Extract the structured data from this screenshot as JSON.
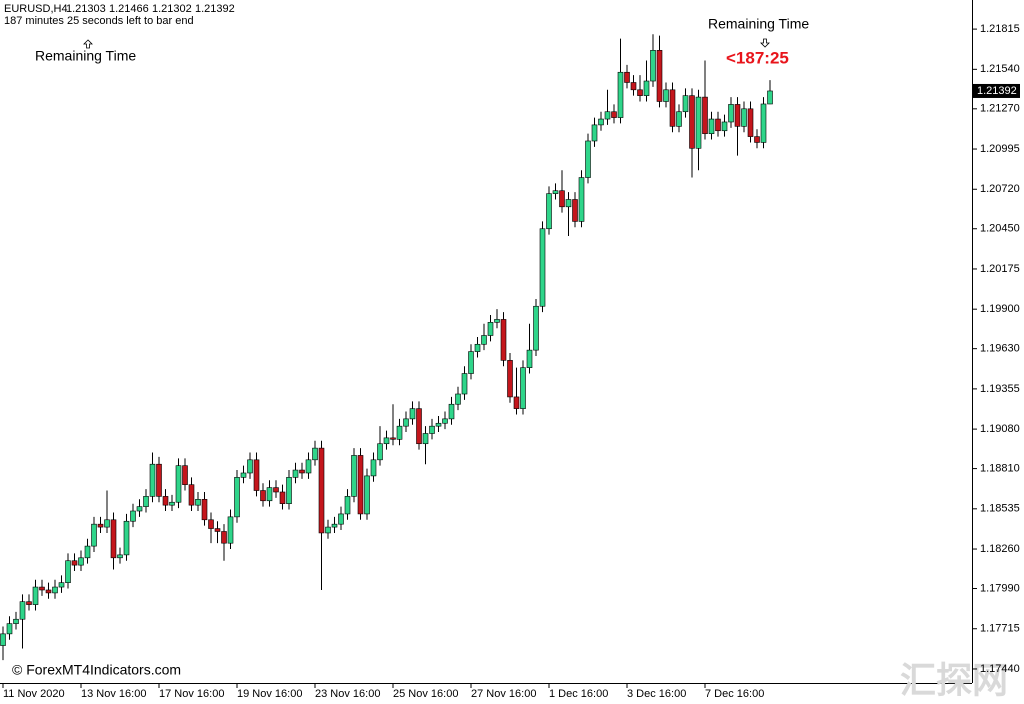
{
  "chart_data": {
    "type": "candlestick",
    "series": [
      {
        "name": "EURUSD,H4",
        "open": [
          1.176,
          1.1768,
          1.1775,
          1.1778,
          1.179,
          1.1788,
          1.18,
          1.1798,
          1.1796,
          1.18,
          1.1803,
          1.1818,
          1.1815,
          1.182,
          1.1828,
          1.1843,
          1.1841,
          1.1846,
          1.182,
          1.1822,
          1.1845,
          1.1852,
          1.1855,
          1.1862,
          1.1884,
          1.1862,
          1.1856,
          1.1858,
          1.1883,
          1.187,
          1.1856,
          1.186,
          1.1846,
          1.184,
          1.1838,
          1.183,
          1.1848,
          1.1875,
          1.1878,
          1.1887,
          1.1866,
          1.1859,
          1.1868,
          1.1865,
          1.1857,
          1.1875,
          1.188,
          1.1878,
          1.1887,
          1.1895,
          1.1837,
          1.1841,
          1.1843,
          1.185,
          1.1862,
          1.189,
          1.185,
          1.1876,
          1.1887,
          1.1898,
          1.1902,
          1.1901,
          1.191,
          1.1915,
          1.1922,
          1.1898,
          1.1905,
          1.191,
          1.1912,
          1.1915,
          1.1925,
          1.1932,
          1.1946,
          1.1961,
          1.1966,
          1.1972,
          1.1981,
          1.1983,
          1.1955,
          1.193,
          1.1922,
          1.195,
          1.1962,
          1.1992,
          1.2045,
          1.2069,
          1.2071,
          1.206,
          1.2065,
          1.205,
          1.208,
          1.2105,
          1.2116,
          1.212,
          1.2125,
          1.2121,
          1.2152,
          1.2145,
          1.214,
          1.2136,
          1.2146,
          1.2167,
          1.2132,
          1.214,
          1.2115,
          1.2125,
          1.2136,
          1.21,
          1.2135,
          1.211,
          1.212,
          1.2112,
          1.2118,
          1.213,
          1.2115,
          1.2127,
          1.2108,
          1.2104,
          1.21303
        ],
        "high": [
          1.1773,
          1.178,
          1.1783,
          1.1795,
          1.1795,
          1.1805,
          1.1805,
          1.1803,
          1.1805,
          1.1808,
          1.1823,
          1.1823,
          1.1825,
          1.1833,
          1.1848,
          1.1848,
          1.1866,
          1.1851,
          1.1827,
          1.185,
          1.1857,
          1.186,
          1.1867,
          1.1892,
          1.1889,
          1.1867,
          1.1863,
          1.1888,
          1.1888,
          1.1875,
          1.1865,
          1.1865,
          1.1851,
          1.1845,
          1.1843,
          1.1853,
          1.188,
          1.1883,
          1.1892,
          1.1892,
          1.1871,
          1.1873,
          1.1873,
          1.187,
          1.188,
          1.1885,
          1.1885,
          1.1892,
          1.19,
          1.19,
          1.1846,
          1.1848,
          1.1855,
          1.1867,
          1.1895,
          1.1895,
          1.1881,
          1.1892,
          1.191,
          1.1907,
          1.1925,
          1.1915,
          1.192,
          1.1927,
          1.1927,
          1.191,
          1.1915,
          1.1917,
          1.192,
          1.193,
          1.1937,
          1.1951,
          1.1966,
          1.1971,
          1.198,
          1.1986,
          1.199,
          1.1988,
          1.196,
          1.195,
          1.1955,
          1.198,
          1.1997,
          1.205,
          1.2074,
          1.2076,
          1.2085,
          1.207,
          1.207,
          1.2085,
          1.211,
          1.2121,
          1.2125,
          1.214,
          1.213,
          1.2175,
          1.2157,
          1.215,
          1.215,
          1.216,
          1.2178,
          1.2177,
          1.2145,
          1.2145,
          1.213,
          1.2141,
          1.2141,
          1.214,
          1.216,
          1.2125,
          1.2125,
          1.2123,
          1.2135,
          1.2135,
          1.2132,
          1.2132,
          1.2113,
          1.2135,
          1.21466
        ],
        "low": [
          1.175,
          1.1764,
          1.1771,
          1.1758,
          1.1784,
          1.1784,
          1.1794,
          1.1792,
          1.1792,
          1.1796,
          1.1799,
          1.1811,
          1.1811,
          1.1816,
          1.1824,
          1.1837,
          1.1837,
          1.1812,
          1.1816,
          1.1818,
          1.1841,
          1.1848,
          1.1851,
          1.1858,
          1.1858,
          1.1852,
          1.1852,
          1.1854,
          1.1866,
          1.1852,
          1.1852,
          1.1842,
          1.183,
          1.183,
          1.1818,
          1.1826,
          1.1844,
          1.1871,
          1.1874,
          1.1862,
          1.1855,
          1.1855,
          1.1861,
          1.1853,
          1.1853,
          1.1871,
          1.1874,
          1.1874,
          1.1883,
          1.1798,
          1.1833,
          1.1837,
          1.1839,
          1.1846,
          1.1858,
          1.1846,
          1.1846,
          1.1872,
          1.1883,
          1.1894,
          1.1897,
          1.1897,
          1.1906,
          1.1911,
          1.1894,
          1.1884,
          1.1901,
          1.1906,
          1.1908,
          1.1911,
          1.1921,
          1.1928,
          1.1942,
          1.1957,
          1.1962,
          1.1968,
          1.1977,
          1.1951,
          1.1926,
          1.1918,
          1.1918,
          1.1946,
          1.1958,
          1.1988,
          1.2041,
          1.2065,
          1.2056,
          1.204,
          1.2046,
          1.2046,
          1.2076,
          1.2101,
          1.2112,
          1.2116,
          1.2117,
          1.2117,
          1.2141,
          1.2136,
          1.2132,
          1.2132,
          1.2142,
          1.2128,
          1.2128,
          1.2111,
          1.2111,
          1.2121,
          1.208,
          1.2085,
          1.2106,
          1.2106,
          1.2108,
          1.2108,
          1.2114,
          1.2095,
          1.2111,
          1.2104,
          1.21,
          1.21,
          1.21302
        ],
        "close": [
          1.1768,
          1.1775,
          1.1778,
          1.179,
          1.1788,
          1.18,
          1.1798,
          1.1796,
          1.18,
          1.1803,
          1.1818,
          1.1815,
          1.182,
          1.1828,
          1.1843,
          1.1841,
          1.1846,
          1.182,
          1.1822,
          1.1845,
          1.1852,
          1.1855,
          1.1862,
          1.1884,
          1.1862,
          1.1856,
          1.1858,
          1.1883,
          1.187,
          1.1856,
          1.186,
          1.1846,
          1.184,
          1.1838,
          1.183,
          1.1848,
          1.1875,
          1.1878,
          1.1887,
          1.1866,
          1.1859,
          1.1868,
          1.1865,
          1.1857,
          1.1875,
          1.188,
          1.1878,
          1.1887,
          1.1895,
          1.1837,
          1.1841,
          1.1843,
          1.185,
          1.1862,
          1.189,
          1.185,
          1.1876,
          1.1887,
          1.1898,
          1.1902,
          1.1901,
          1.191,
          1.1915,
          1.1922,
          1.1898,
          1.1905,
          1.191,
          1.1912,
          1.1915,
          1.1925,
          1.1932,
          1.1946,
          1.1961,
          1.1966,
          1.1972,
          1.1981,
          1.1983,
          1.1955,
          1.193,
          1.1922,
          1.195,
          1.1962,
          1.1992,
          1.2045,
          1.2069,
          1.2071,
          1.206,
          1.2065,
          1.205,
          1.208,
          1.2105,
          1.2116,
          1.212,
          1.2125,
          1.2121,
          1.2152,
          1.2145,
          1.214,
          1.2136,
          1.2146,
          1.2167,
          1.2132,
          1.214,
          1.2115,
          1.2125,
          1.2136,
          1.21,
          1.2135,
          1.211,
          1.212,
          1.2112,
          1.2118,
          1.213,
          1.2115,
          1.2127,
          1.2108,
          1.2104,
          1.21303,
          1.21392
        ]
      }
    ],
    "categories": [
      "11 Nov 2020",
      null,
      null,
      null,
      null,
      null,
      null,
      null,
      null,
      null,
      null,
      null,
      "13 Nov 16:00",
      null,
      null,
      null,
      null,
      null,
      null,
      null,
      null,
      null,
      null,
      null,
      "17 Nov 16:00",
      null,
      null,
      null,
      null,
      null,
      null,
      null,
      null,
      null,
      null,
      null,
      "19 Nov 16:00",
      null,
      null,
      null,
      null,
      null,
      null,
      null,
      null,
      null,
      null,
      null,
      "23 Nov 16:00",
      null,
      null,
      null,
      null,
      null,
      null,
      null,
      null,
      null,
      null,
      null,
      "25 Nov 16:00",
      null,
      null,
      null,
      null,
      null,
      null,
      null,
      null,
      null,
      null,
      null,
      "27 Nov 16:00",
      null,
      null,
      null,
      null,
      null,
      null,
      null,
      null,
      null,
      null,
      null,
      "1 Dec 16:00",
      null,
      null,
      null,
      null,
      null,
      null,
      null,
      null,
      null,
      null,
      null,
      "3 Dec 16:00",
      null,
      null,
      null,
      null,
      null,
      null,
      null,
      null,
      null,
      null,
      null,
      "7 Dec 16:00",
      null,
      null,
      null,
      null,
      null,
      null,
      null,
      null,
      null,
      null
    ],
    "up_color": "#2fd58a",
    "down_color": "#c4161c",
    "ylim": [
      1.17344,
      1.22014
    ],
    "yticks": [
      1.21815,
      {
        "value": 1.2154,
        "label": "1.21540"
      },
      {
        "value": 1.2127,
        "label": "1.21270"
      },
      1.20995,
      {
        "value": 1.2072,
        "label": "1.20720"
      },
      {
        "value": 1.2045,
        "label": "1.20450"
      },
      1.20175,
      {
        "value": 1.199,
        "label": "1.19900"
      },
      {
        "value": 1.1963,
        "label": "1.19630"
      },
      1.19355,
      {
        "value": 1.1908,
        "label": "1.19080"
      },
      {
        "value": 1.1881,
        "label": "1.18810"
      },
      1.18535,
      {
        "value": 1.1826,
        "label": "1.18260"
      },
      {
        "value": 1.1799,
        "label": "1.17990"
      },
      1.17715,
      {
        "value": 1.1744,
        "label": "1.17440"
      }
    ],
    "timer_text": "187 minutes 25 seconds left to bar end",
    "remaining_label_left": "Remaining Time",
    "remaining_label_right": "Remaining Time",
    "remaining_time": "<187:25",
    "copyright": "© ForexMT4Indicators.com",
    "watermark": "汇探网"
  }
}
